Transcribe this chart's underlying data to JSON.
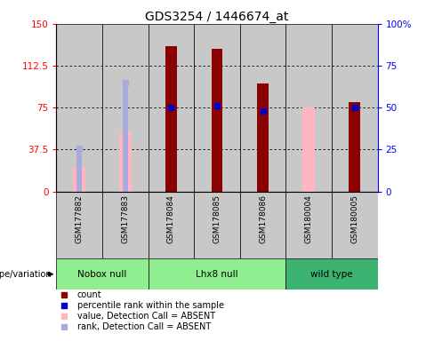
{
  "title": "GDS3254 / 1446674_at",
  "samples": [
    "GSM177882",
    "GSM177883",
    "GSM178084",
    "GSM178085",
    "GSM178086",
    "GSM180004",
    "GSM180005"
  ],
  "count_values": [
    null,
    null,
    130,
    128,
    97,
    null,
    80
  ],
  "percentile_rank": [
    null,
    null,
    50,
    51,
    48,
    null,
    50
  ],
  "absent_value": [
    22,
    53,
    null,
    null,
    null,
    75,
    null
  ],
  "absent_rank": [
    26,
    65,
    null,
    null,
    null,
    null,
    null
  ],
  "group_info": [
    {
      "name": "Nobox null",
      "start": 0,
      "end": 1,
      "color": "#90EE90"
    },
    {
      "name": "Lhx8 null",
      "start": 2,
      "end": 4,
      "color": "#90EE90"
    },
    {
      "name": "wild type",
      "start": 5,
      "end": 6,
      "color": "#3CB371"
    }
  ],
  "left_ylim": [
    0,
    150
  ],
  "right_ylim": [
    0,
    100
  ],
  "left_yticks": [
    0,
    37.5,
    75,
    112.5,
    150
  ],
  "right_yticks": [
    0,
    25,
    50,
    75,
    100
  ],
  "left_yticklabels": [
    "0",
    "37.5",
    "75",
    "112.5",
    "150"
  ],
  "right_yticklabels": [
    "0",
    "25",
    "50",
    "75",
    "100%"
  ],
  "count_color": "#8B0000",
  "absent_value_color": "#FFB6C1",
  "absent_rank_color": "#AAAADD",
  "percentile_color": "#0000CD",
  "sample_bg_color": "#C8C8C8",
  "plot_bg": "#FFFFFF",
  "bar_width": 0.25,
  "absent_bar_width": 0.28,
  "legend_items": [
    {
      "color": "#8B0000",
      "label": "count"
    },
    {
      "color": "#0000CD",
      "label": "percentile rank within the sample"
    },
    {
      "color": "#FFB6C1",
      "label": "value, Detection Call = ABSENT"
    },
    {
      "color": "#AAAADD",
      "label": "rank, Detection Call = ABSENT"
    }
  ]
}
